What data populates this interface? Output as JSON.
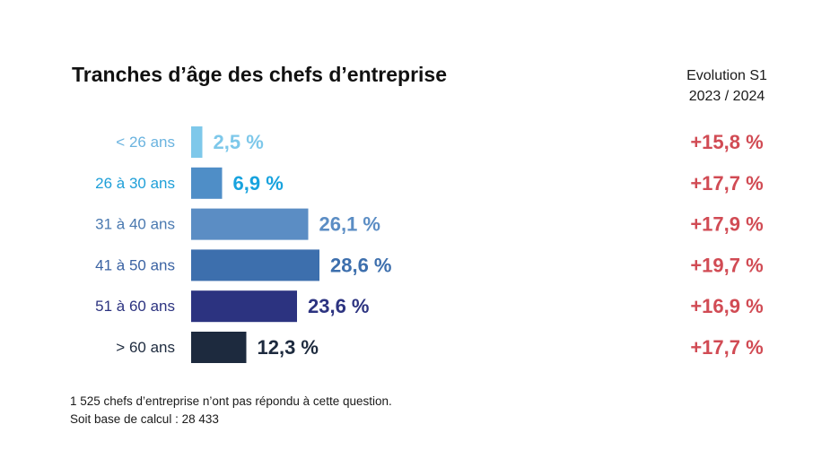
{
  "title": "Tranches d’âge des chefs d’entreprise",
  "evolution_header": {
    "line1": "Evolution S1",
    "line2": "2023 / 2024"
  },
  "footnote": {
    "line1": "1 525 chefs d’entreprise n’ont pas répondu à cette question.",
    "line2": "Soit base de calcul : 28 433"
  },
  "colors": {
    "evolution": "#d14b54",
    "bars": [
      "#7ec8ea",
      "#4f8ec7",
      "#5b8dc4",
      "#3d6fad",
      "#2c3380",
      "#1d2a3e"
    ],
    "category_labels": [
      "#6ab3df",
      "#1e9fd8",
      "#4a79b0",
      "#3b63a3",
      "#2c3380",
      "#1d2a3e"
    ],
    "value_labels": [
      "#7ec8ea",
      "#18a3de",
      "#5b8dc4",
      "#3d6fad",
      "#2c3380",
      "#1d2a3e"
    ]
  },
  "chart_data": {
    "type": "bar",
    "orientation": "horizontal",
    "title": "Tranches d’âge des chefs d’entreprise",
    "categories": [
      "< 26 ans",
      "26 à 30 ans",
      "31 à 40 ans",
      "41 à 50 ans",
      "51 à 60 ans",
      "> 60 ans"
    ],
    "values": [
      2.5,
      6.9,
      26.1,
      28.6,
      23.6,
      12.3
    ],
    "value_labels": [
      "2,5 %",
      "6,9 %",
      "26,1 %",
      "28,6 %",
      "23,6 %",
      "12,3 %"
    ],
    "unit": "%",
    "evolution": [
      15.8,
      17.7,
      17.9,
      19.7,
      16.9,
      17.7
    ],
    "evolution_labels": [
      "+15,8 %",
      "+17,7 %",
      "+17,9 %",
      "+19,7 %",
      "+16,9 %",
      "+17,7 %"
    ],
    "grid": false,
    "legend": "none"
  }
}
